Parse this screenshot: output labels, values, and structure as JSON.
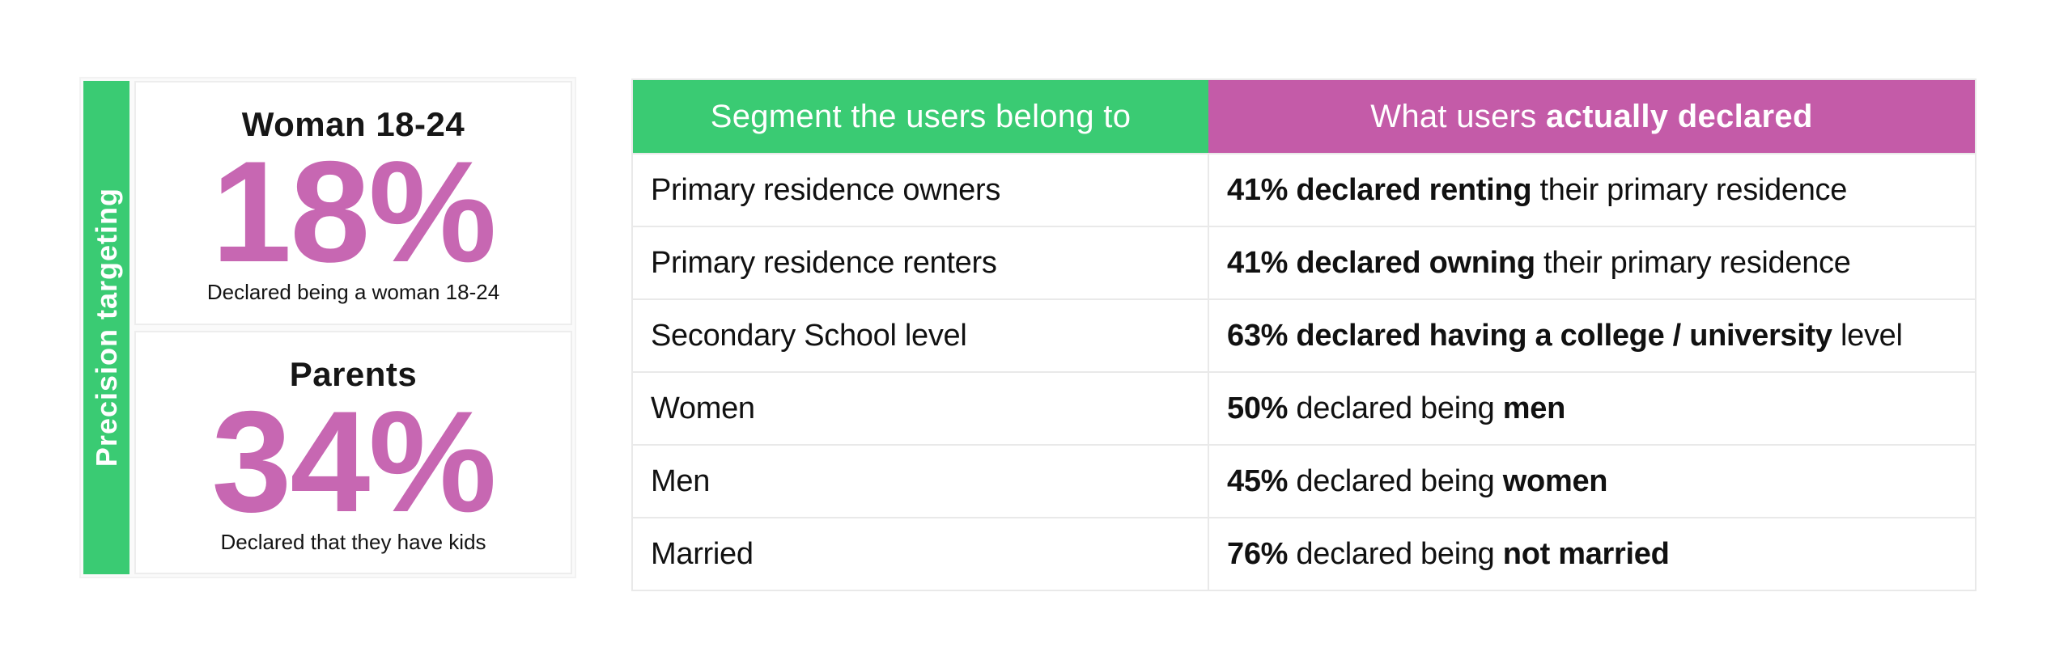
{
  "colors": {
    "green": "#3acb73",
    "pink_header": "#c45ba8",
    "pink_number": "#c767b2",
    "border": "#e9e9e9"
  },
  "sidebar": {
    "label": "Precision targeting"
  },
  "stats": [
    {
      "title": "Woman 18-24",
      "value": "18%",
      "caption": "Declared being a woman 18-24"
    },
    {
      "title": "Parents",
      "value": "34%",
      "caption": "Declared that they have kids"
    }
  ],
  "table": {
    "headers": {
      "segment": "Segment the users belong to",
      "declared_normal": "What users ",
      "declared_bold": "actually declared"
    },
    "rows": [
      {
        "segment": "Primary residence owners",
        "bold1": "41% declared renting",
        "normal": " their primary residence",
        "bold2": ""
      },
      {
        "segment": "Primary residence renters",
        "bold1": "41% declared owning",
        "normal": " their primary residence",
        "bold2": ""
      },
      {
        "segment": "Secondary School level",
        "bold1": "63% declared having a college / university",
        "normal": " level",
        "bold2": ""
      },
      {
        "segment": "Women",
        "bold1": "50%",
        "normal": " declared being ",
        "bold2": "men"
      },
      {
        "segment": "Men",
        "bold1": "45%",
        "normal": " declared being ",
        "bold2": "women"
      },
      {
        "segment": "Married",
        "bold1": "76%",
        "normal": " declared being ",
        "bold2": "not married"
      }
    ]
  },
  "chart_data": {
    "type": "table",
    "title": "Precision targeting",
    "columns": [
      "Segment the users belong to",
      "What users actually declared"
    ],
    "rows": [
      [
        "Primary residence owners",
        "41% declared renting their primary residence"
      ],
      [
        "Primary residence renters",
        "41% declared owning their primary residence"
      ],
      [
        "Secondary School level",
        "63% declared having a college / university level"
      ],
      [
        "Women",
        "50% declared being men"
      ],
      [
        "Men",
        "45% declared being women"
      ],
      [
        "Married",
        "76% declared being not married"
      ]
    ],
    "stats": [
      {
        "label": "Woman 18-24",
        "value": 18,
        "unit": "%",
        "caption": "Declared being a woman 18-24"
      },
      {
        "label": "Parents",
        "value": 34,
        "unit": "%",
        "caption": "Declared that they have kids"
      }
    ]
  }
}
